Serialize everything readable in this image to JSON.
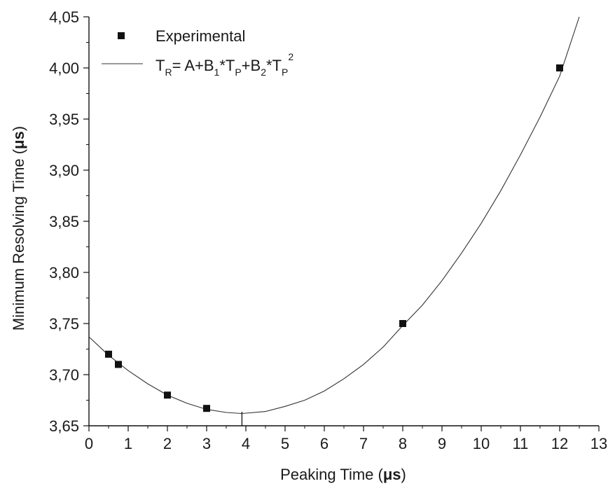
{
  "chart_data": {
    "type": "scatter",
    "xlabel_prefix": "Peaking Time (",
    "ylabel_prefix": "Minimum Resolving Time (",
    "unit": "μs",
    "unit_close": ")",
    "xlim": [
      0,
      13
    ],
    "ylim": [
      3.65,
      4.05
    ],
    "x_ticks": [
      "0",
      "1",
      "2",
      "3",
      "4",
      "5",
      "6",
      "7",
      "8",
      "9",
      "10",
      "11",
      "12",
      "13"
    ],
    "y_ticks": [
      "3,65",
      "3,70",
      "3,75",
      "3,80",
      "3,85",
      "3,90",
      "3,95",
      "4,00",
      "4,05"
    ],
    "grid": false,
    "legend_position": "top-left",
    "series": [
      {
        "name": "Experimental",
        "kind": "points",
        "marker": "square",
        "x": [
          0.5,
          0.75,
          2,
          3,
          8,
          12
        ],
        "y": [
          3.72,
          3.71,
          3.68,
          3.667,
          3.75,
          4.0
        ]
      },
      {
        "name": "T_R = A+B_1*T_P+B_2*T_P^2",
        "kind": "fit-line",
        "x": [
          0,
          0.5,
          1,
          1.5,
          2,
          2.5,
          3,
          3.5,
          3.9,
          4.5,
          5,
          5.5,
          6,
          6.5,
          7,
          7.5,
          8,
          8.5,
          9,
          9.5,
          10,
          10.5,
          11,
          11.5,
          12,
          12.5
        ],
        "y": [
          3.737,
          3.719,
          3.704,
          3.691,
          3.68,
          3.672,
          3.666,
          3.663,
          3.662,
          3.664,
          3.669,
          3.675,
          3.684,
          3.696,
          3.71,
          3.727,
          3.748,
          3.768,
          3.792,
          3.819,
          3.848,
          3.88,
          3.915,
          3.952,
          3.992,
          4.05
        ],
        "minimum_marker_x": 3.9
      }
    ],
    "legend": {
      "entry1": "Experimental",
      "formula": {
        "T": "T",
        "R": "R",
        "eq": "= A+B",
        "one": "1",
        "star_T": "*T",
        "P": "P",
        "plus_B": "+B",
        "two": "2",
        "sq": "2"
      }
    }
  }
}
